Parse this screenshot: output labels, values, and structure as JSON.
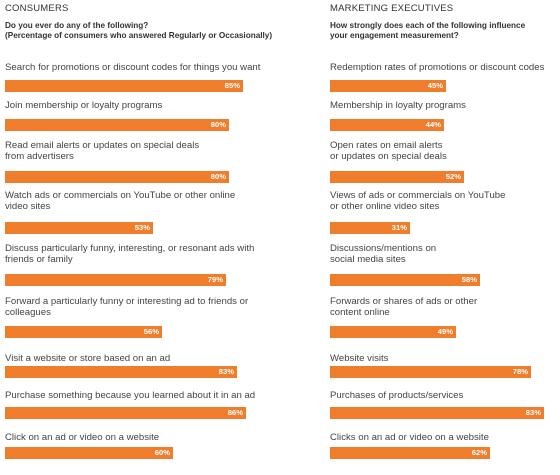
{
  "chart_data": [
    {
      "type": "bar",
      "orientation": "horizontal",
      "title": "CONSUMERS",
      "subtitle": [
        "Do you ever do any of the following?",
        "(Percentage of consumers who answered Regularly or Occasionally)"
      ],
      "xlim": [
        0,
        100
      ],
      "categories": [
        [
          "Search for promotions or discount codes for things you want"
        ],
        [
          "Join membership or loyalty programs"
        ],
        [
          "Read email alerts or updates on special deals",
          "from advertisers"
        ],
        [
          "Watch ads or commercials on YouTube or other online",
          "video sites"
        ],
        [
          "Discuss particularly funny, interesting, or resonant ads with",
          "friends or family"
        ],
        [
          "Forward a particularly funny or interesting ad to friends or",
          "colleagues"
        ],
        [
          "Visit a website or store based on an ad"
        ],
        [
          "Purchase something because you learned about it in an ad"
        ],
        [
          "Click on an ad or video on a website"
        ]
      ],
      "values": [
        85,
        80,
        80,
        53,
        79,
        56,
        83,
        86,
        60
      ],
      "value_labels": [
        "85%",
        "80%",
        "80%",
        "53%",
        "79%",
        "56%",
        "83%",
        "86%",
        "60%"
      ],
      "bar_color": "#f07d2c"
    },
    {
      "type": "bar",
      "orientation": "horizontal",
      "title": "MARKETING EXECUTIVES",
      "subtitle": [
        "How strongly does each of the following influence",
        "your engagement measurement?"
      ],
      "xlim": [
        0,
        100
      ],
      "categories": [
        [
          "Redemption rates of promotions or discount codes"
        ],
        [
          "Membership in loyalty programs"
        ],
        [
          "Open rates on email alerts",
          "or updates on special deals"
        ],
        [
          "Views of ads or commercials on YouTube",
          "or other online video sites"
        ],
        [
          "Discussions/mentions on",
          "social media sites"
        ],
        [
          "Forwards or shares of ads or other",
          "content online"
        ],
        [
          "Website visits"
        ],
        [
          "Purchases of products/services"
        ],
        [
          "Clicks on an ad or video on a website"
        ]
      ],
      "values": [
        45,
        44,
        52,
        31,
        58,
        49,
        78,
        83,
        62
      ],
      "value_labels": [
        "45%",
        "44%",
        "52%",
        "31%",
        "58%",
        "49%",
        "78%",
        "83%",
        "62%"
      ],
      "bar_color": "#f07d2c"
    }
  ]
}
